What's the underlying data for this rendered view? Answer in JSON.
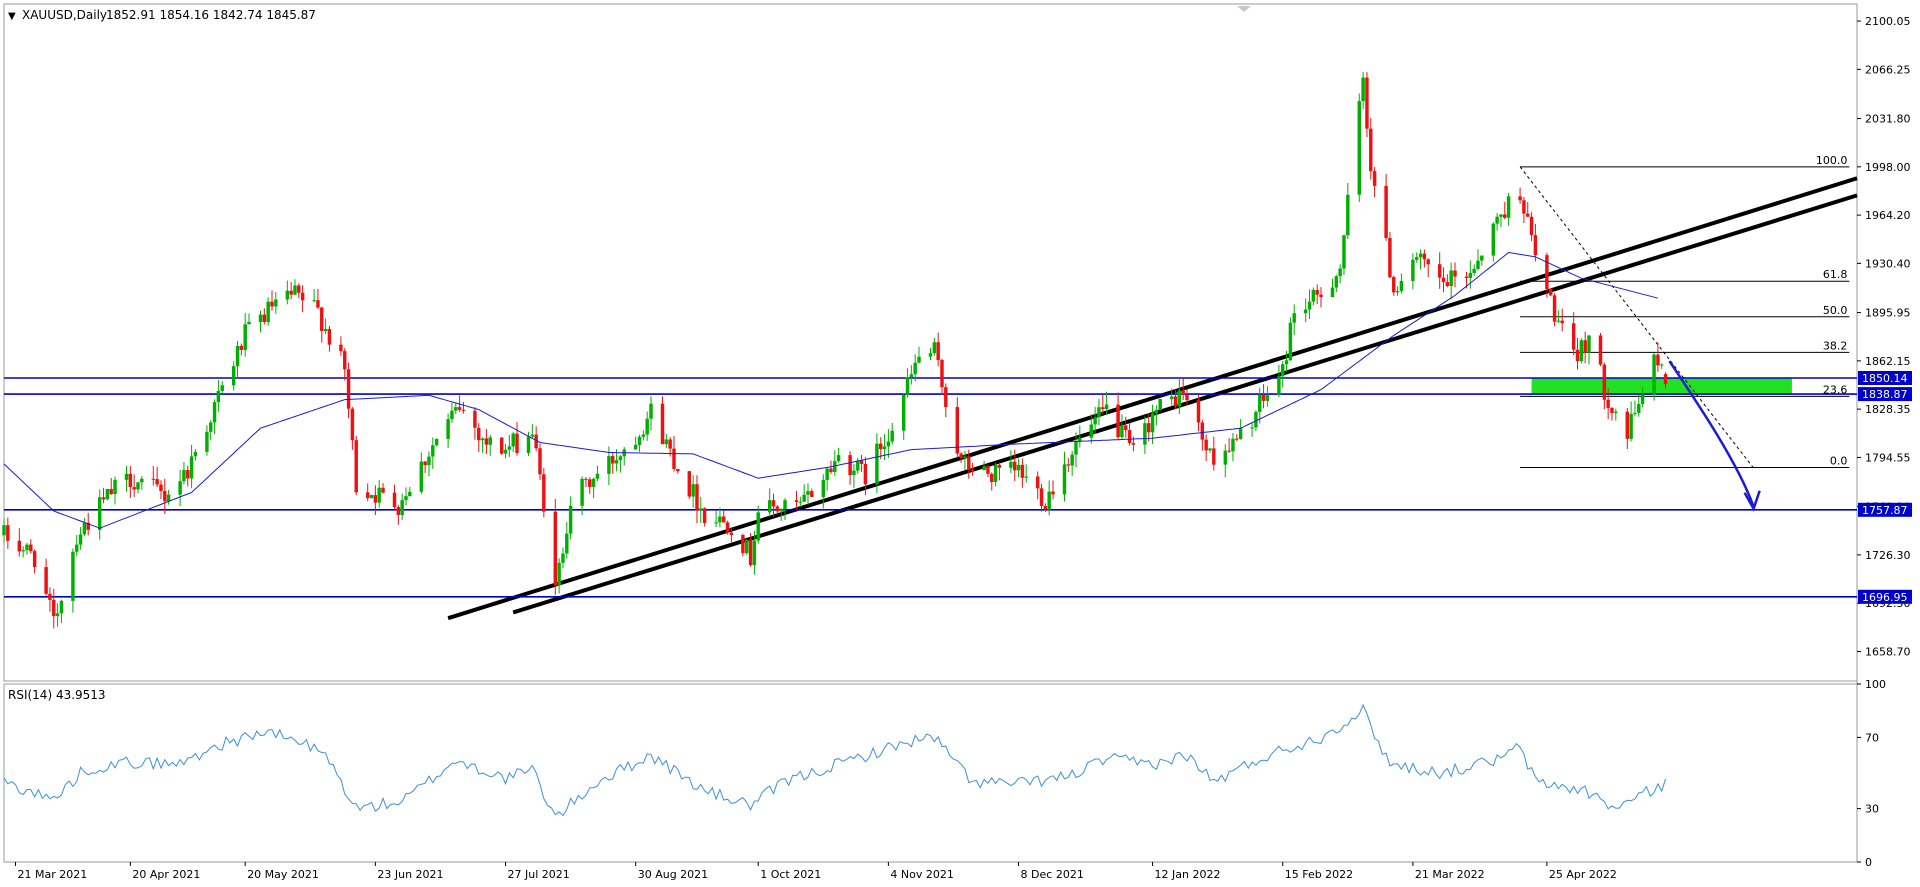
{
  "header": {
    "symbol": "XAUUSD,Daily",
    "ohlc": "1852.91 1854.16 1842.74 1845.87",
    "menu_glyph": "▼"
  },
  "rsi_header": {
    "label": "RSI(14) 43.9513"
  },
  "colors": {
    "bull": "#00b000",
    "bear": "#ee1111",
    "ma": "#1a1ad8",
    "hline": "#0000cc",
    "trend": "#000000",
    "fib": "#000000",
    "zone": "#22e022",
    "arrow": "#1a1ad8",
    "rsi": "#3a8fe0",
    "price_tag_bg": "#0000cc",
    "price_tag_text": "#ffffff"
  },
  "chart_data": [
    {
      "type": "candlestick",
      "symbol": "XAUUSD",
      "timeframe": "Daily",
      "open": 1852.91,
      "high": 1854.16,
      "low": 1842.74,
      "close": 1845.87,
      "x_range": [
        "2021-03-18",
        "2022-07-15"
      ],
      "ylim": [
        1638,
        2112
      ],
      "y_ticks": [
        2100.05,
        2066.25,
        2031.8,
        1998.0,
        1964.2,
        1930.4,
        1895.95,
        1862.15,
        1828.35,
        1794.55,
        1760.1,
        1726.3,
        1692.5,
        1658.7
      ],
      "x_ticks": [
        {
          "label": "21 Mar 2021",
          "date": "2021-03-21"
        },
        {
          "label": "20 Apr 2021",
          "date": "2021-04-20"
        },
        {
          "label": "20 May 2021",
          "date": "2021-05-20"
        },
        {
          "label": "23 Jun 2021",
          "date": "2021-06-23"
        },
        {
          "label": "27 Jul 2021",
          "date": "2021-07-27"
        },
        {
          "label": "30 Aug 2021",
          "date": "2021-08-30"
        },
        {
          "label": "1 Oct 2021",
          "date": "2021-10-01"
        },
        {
          "label": "4 Nov 2021",
          "date": "2021-11-04"
        },
        {
          "label": "8 Dec 2021",
          "date": "2021-12-08"
        },
        {
          "label": "12 Jan 2022",
          "date": "2022-01-12"
        },
        {
          "label": "15 Feb 2022",
          "date": "2022-02-15"
        },
        {
          "label": "21 Mar 2022",
          "date": "2022-03-21"
        },
        {
          "label": "25 Apr 2022",
          "date": "2022-04-25"
        }
      ],
      "price_anchors": [
        {
          "date": "2021-03-18",
          "value": 1740
        },
        {
          "date": "2021-03-26",
          "value": 1725
        },
        {
          "date": "2021-03-31",
          "value": 1678
        },
        {
          "date": "2021-04-06",
          "value": 1740
        },
        {
          "date": "2021-04-15",
          "value": 1770
        },
        {
          "date": "2021-04-20",
          "value": 1780
        },
        {
          "date": "2021-04-29",
          "value": 1768
        },
        {
          "date": "2021-05-05",
          "value": 1786
        },
        {
          "date": "2021-05-12",
          "value": 1830
        },
        {
          "date": "2021-05-20",
          "value": 1880
        },
        {
          "date": "2021-05-27",
          "value": 1900
        },
        {
          "date": "2021-06-02",
          "value": 1908
        },
        {
          "date": "2021-06-08",
          "value": 1897
        },
        {
          "date": "2021-06-15",
          "value": 1855
        },
        {
          "date": "2021-06-18",
          "value": 1775
        },
        {
          "date": "2021-06-29",
          "value": 1762
        },
        {
          "date": "2021-07-08",
          "value": 1803
        },
        {
          "date": "2021-07-15",
          "value": 1830
        },
        {
          "date": "2021-07-22",
          "value": 1805
        },
        {
          "date": "2021-07-27",
          "value": 1800
        },
        {
          "date": "2021-08-03",
          "value": 1812
        },
        {
          "date": "2021-08-06",
          "value": 1763
        },
        {
          "date": "2021-08-09",
          "value": 1700
        },
        {
          "date": "2021-08-13",
          "value": 1765
        },
        {
          "date": "2021-08-20",
          "value": 1782
        },
        {
          "date": "2021-08-30",
          "value": 1810
        },
        {
          "date": "2021-09-03",
          "value": 1827
        },
        {
          "date": "2021-09-10",
          "value": 1788
        },
        {
          "date": "2021-09-17",
          "value": 1755
        },
        {
          "date": "2021-09-24",
          "value": 1748
        },
        {
          "date": "2021-09-29",
          "value": 1725
        },
        {
          "date": "2021-10-01",
          "value": 1758
        },
        {
          "date": "2021-10-12",
          "value": 1760
        },
        {
          "date": "2021-10-22",
          "value": 1795
        },
        {
          "date": "2021-10-29",
          "value": 1782
        },
        {
          "date": "2021-11-05",
          "value": 1818
        },
        {
          "date": "2021-11-12",
          "value": 1865
        },
        {
          "date": "2021-11-16",
          "value": 1868
        },
        {
          "date": "2021-11-23",
          "value": 1790
        },
        {
          "date": "2021-12-01",
          "value": 1782
        },
        {
          "date": "2021-12-08",
          "value": 1785
        },
        {
          "date": "2021-12-15",
          "value": 1765
        },
        {
          "date": "2021-12-22",
          "value": 1800
        },
        {
          "date": "2021-12-31",
          "value": 1828
        },
        {
          "date": "2022-01-07",
          "value": 1797
        },
        {
          "date": "2022-01-12",
          "value": 1825
        },
        {
          "date": "2022-01-20",
          "value": 1840
        },
        {
          "date": "2022-01-27",
          "value": 1795
        },
        {
          "date": "2022-02-03",
          "value": 1805
        },
        {
          "date": "2022-02-10",
          "value": 1835
        },
        {
          "date": "2022-02-15",
          "value": 1855
        },
        {
          "date": "2022-02-18",
          "value": 1898
        },
        {
          "date": "2022-02-24",
          "value": 1905
        },
        {
          "date": "2022-03-02",
          "value": 1928
        },
        {
          "date": "2022-03-08",
          "value": 2060
        },
        {
          "date": "2022-03-10",
          "value": 2000
        },
        {
          "date": "2022-03-16",
          "value": 1912
        },
        {
          "date": "2022-03-21",
          "value": 1935
        },
        {
          "date": "2022-03-29",
          "value": 1915
        },
        {
          "date": "2022-04-05",
          "value": 1925
        },
        {
          "date": "2022-04-13",
          "value": 1965
        },
        {
          "date": "2022-04-18",
          "value": 1982
        },
        {
          "date": "2022-04-22",
          "value": 1935
        },
        {
          "date": "2022-04-28",
          "value": 1888
        },
        {
          "date": "2022-05-02",
          "value": 1862
        },
        {
          "date": "2022-05-06",
          "value": 1880
        },
        {
          "date": "2022-05-10",
          "value": 1842
        },
        {
          "date": "2022-05-16",
          "value": 1810
        },
        {
          "date": "2022-05-20",
          "value": 1842
        },
        {
          "date": "2022-05-24",
          "value": 1865
        },
        {
          "date": "2022-05-26",
          "value": 1850
        }
      ],
      "moving_average": [
        {
          "date": "2021-03-18",
          "value": 1790
        },
        {
          "date": "2021-03-31",
          "value": 1757
        },
        {
          "date": "2021-04-12",
          "value": 1745
        },
        {
          "date": "2021-05-06",
          "value": 1770
        },
        {
          "date": "2021-05-24",
          "value": 1815
        },
        {
          "date": "2021-06-15",
          "value": 1835
        },
        {
          "date": "2021-07-07",
          "value": 1838
        },
        {
          "date": "2021-07-20",
          "value": 1828
        },
        {
          "date": "2021-08-05",
          "value": 1805
        },
        {
          "date": "2021-08-23",
          "value": 1798
        },
        {
          "date": "2021-09-14",
          "value": 1797
        },
        {
          "date": "2021-10-01",
          "value": 1780
        },
        {
          "date": "2021-10-20",
          "value": 1788
        },
        {
          "date": "2021-11-10",
          "value": 1800
        },
        {
          "date": "2021-12-08",
          "value": 1804
        },
        {
          "date": "2022-01-12",
          "value": 1808
        },
        {
          "date": "2022-02-04",
          "value": 1815
        },
        {
          "date": "2022-02-25",
          "value": 1842
        },
        {
          "date": "2022-03-16",
          "value": 1880
        },
        {
          "date": "2022-04-01",
          "value": 1908
        },
        {
          "date": "2022-04-15",
          "value": 1938
        },
        {
          "date": "2022-04-22",
          "value": 1935
        },
        {
          "date": "2022-05-04",
          "value": 1920
        },
        {
          "date": "2022-05-24",
          "value": 1906
        }
      ],
      "horizontal_levels": [
        {
          "value": 1850.14,
          "label": "1850.14"
        },
        {
          "value": 1838.87,
          "label": "1838.87"
        },
        {
          "value": 1757.87,
          "label": "1757.87"
        },
        {
          "value": 1696.95,
          "label": "1696.95"
        }
      ],
      "trend_lines": [
        {
          "from": {
            "date": "2021-07-12",
            "value": 1682
          },
          "to": {
            "date": "2022-07-15",
            "value": 1990
          }
        },
        {
          "from": {
            "date": "2021-07-29",
            "value": 1686
          },
          "to": {
            "date": "2022-07-15",
            "value": 1978
          }
        }
      ],
      "fibonacci": {
        "from": {
          "date": "2022-04-18",
          "value": 1998
        },
        "to": {
          "date": "2022-05-16",
          "value": 1787
        },
        "end_date": "2022-07-13",
        "levels": [
          {
            "ratio": "100.0",
            "value": 1998.0
          },
          {
            "ratio": "61.8",
            "value": 1917.9
          },
          {
            "ratio": "50.0",
            "value": 1893.0
          },
          {
            "ratio": "38.2",
            "value": 1868.1
          },
          {
            "ratio": "23.6",
            "value": 1837.3
          },
          {
            "ratio": "0.0",
            "value": 1787.5
          }
        ]
      },
      "zone": {
        "from_date": "2022-04-21",
        "to_date": "2022-06-28",
        "low": 1838.87,
        "high": 1850.14
      },
      "arrow_path": [
        {
          "date": "2022-05-27",
          "value": 1862
        },
        {
          "date": "2022-06-04",
          "value": 1830
        },
        {
          "date": "2022-06-14",
          "value": 1790
        },
        {
          "date": "2022-06-18",
          "value": 1760
        }
      ]
    },
    {
      "type": "line",
      "title": "RSI(14) 43.9513",
      "ylim": [
        0,
        100
      ],
      "y_ticks": [
        100,
        70,
        30,
        0
      ],
      "series": [
        {
          "values": [
            {
              "date": "2021-03-18",
              "value": 45
            },
            {
              "date": "2021-03-31",
              "value": 35
            },
            {
              "date": "2021-04-08",
              "value": 52
            },
            {
              "date": "2021-04-20",
              "value": 56
            },
            {
              "date": "2021-05-03",
              "value": 55
            },
            {
              "date": "2021-05-12",
              "value": 65
            },
            {
              "date": "2021-05-25",
              "value": 73
            },
            {
              "date": "2021-06-03",
              "value": 68
            },
            {
              "date": "2021-06-10",
              "value": 60
            },
            {
              "date": "2021-06-18",
              "value": 30
            },
            {
              "date": "2021-06-30",
              "value": 34
            },
            {
              "date": "2021-07-14",
              "value": 57
            },
            {
              "date": "2021-07-27",
              "value": 47
            },
            {
              "date": "2021-08-03",
              "value": 52
            },
            {
              "date": "2021-08-09",
              "value": 25
            },
            {
              "date": "2021-08-20",
              "value": 45
            },
            {
              "date": "2021-09-03",
              "value": 60
            },
            {
              "date": "2021-09-17",
              "value": 40
            },
            {
              "date": "2021-09-29",
              "value": 32
            },
            {
              "date": "2021-10-08",
              "value": 45
            },
            {
              "date": "2021-10-22",
              "value": 55
            },
            {
              "date": "2021-11-10",
              "value": 68
            },
            {
              "date": "2021-11-16",
              "value": 70
            },
            {
              "date": "2021-11-26",
              "value": 45
            },
            {
              "date": "2021-12-08",
              "value": 44
            },
            {
              "date": "2021-12-21",
              "value": 48
            },
            {
              "date": "2021-12-31",
              "value": 58
            },
            {
              "date": "2022-01-12",
              "value": 55
            },
            {
              "date": "2022-01-21",
              "value": 60
            },
            {
              "date": "2022-01-28",
              "value": 45
            },
            {
              "date": "2022-02-11",
              "value": 60
            },
            {
              "date": "2022-02-25",
              "value": 70
            },
            {
              "date": "2022-03-08",
              "value": 85
            },
            {
              "date": "2022-03-15",
              "value": 55
            },
            {
              "date": "2022-03-29",
              "value": 50
            },
            {
              "date": "2022-04-13",
              "value": 58
            },
            {
              "date": "2022-04-18",
              "value": 65
            },
            {
              "date": "2022-04-22",
              "value": 45
            },
            {
              "date": "2022-05-05",
              "value": 40
            },
            {
              "date": "2022-05-13",
              "value": 30
            },
            {
              "date": "2022-05-20",
              "value": 38
            },
            {
              "date": "2022-05-26",
              "value": 44
            }
          ]
        }
      ]
    }
  ]
}
